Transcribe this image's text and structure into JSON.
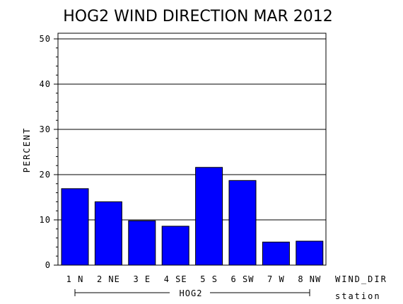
{
  "chart_data": {
    "type": "bar",
    "title": "HOG2 WIND DIRECTION MAR 2012",
    "ylabel": "PERCENT",
    "xlabel": "WIND_DIR",
    "group_axis_label": "station",
    "group_label": "HOG2",
    "ylim": [
      0,
      50
    ],
    "yticks": [
      "0",
      "10",
      "20",
      "30",
      "40",
      "50"
    ],
    "categories": [
      "1 N",
      "2 NE",
      "3 E",
      "4 SE",
      "5 S",
      "6 SW",
      "7 W",
      "8 NW"
    ],
    "values": [
      16.9,
      14.0,
      9.8,
      8.6,
      21.6,
      18.7,
      5.1,
      5.3
    ],
    "bar_color": "#0000ff",
    "grid": true
  }
}
